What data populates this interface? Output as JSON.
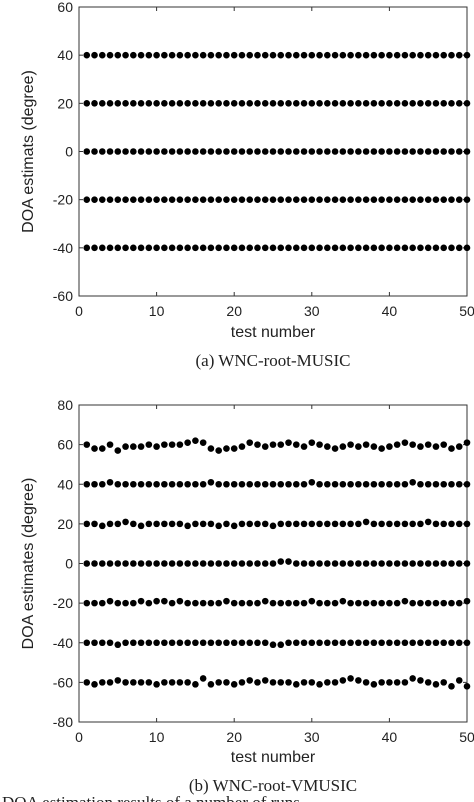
{
  "chart_data": [
    {
      "type": "scatter",
      "caption": "(a) WNC-root-MUSIC",
      "xlabel": "test number",
      "ylabel": "DOA estimats (degree)",
      "xlim": [
        0,
        50
      ],
      "xticks": [
        0,
        10,
        20,
        30,
        40,
        50
      ],
      "ylim": [
        -60,
        60
      ],
      "yticks": [
        -60,
        -40,
        -20,
        0,
        20,
        40,
        60
      ],
      "color": "#000000",
      "x": [
        1,
        2,
        3,
        4,
        5,
        6,
        7,
        8,
        9,
        10,
        11,
        12,
        13,
        14,
        15,
        16,
        17,
        18,
        19,
        20,
        21,
        22,
        23,
        24,
        25,
        26,
        27,
        28,
        29,
        30,
        31,
        32,
        33,
        34,
        35,
        36,
        37,
        38,
        39,
        40,
        41,
        42,
        43,
        44,
        45,
        46,
        47,
        48,
        49,
        50
      ],
      "series": [
        {
          "values": [
            40,
            40,
            40,
            40,
            40,
            40,
            40,
            40,
            40,
            40,
            40,
            40,
            40,
            40,
            40,
            40,
            40,
            40,
            40,
            40,
            40,
            40,
            40,
            40,
            40,
            40,
            40,
            40,
            40,
            40,
            40,
            40,
            40,
            40,
            40,
            40,
            40,
            40,
            40,
            40,
            40,
            40,
            40,
            40,
            40,
            40,
            40,
            40,
            40,
            40
          ]
        },
        {
          "values": [
            20,
            20,
            20,
            20,
            20,
            20,
            20,
            20,
            20,
            20,
            20,
            20,
            20,
            20,
            20,
            20,
            20,
            20,
            20,
            20,
            20,
            20,
            20,
            20,
            20,
            20,
            20,
            20,
            20,
            20,
            20,
            20,
            20,
            20,
            20,
            20,
            20,
            20,
            20,
            20,
            20,
            20,
            20,
            20,
            20,
            20,
            20,
            20,
            20,
            20
          ]
        },
        {
          "values": [
            0,
            0,
            0,
            0,
            0,
            0,
            0,
            0,
            0,
            0,
            0,
            0,
            0,
            0,
            0,
            0,
            0,
            0,
            0,
            0,
            0,
            0,
            0,
            0,
            0,
            0,
            0,
            0,
            0,
            0,
            0,
            0,
            0,
            0,
            0,
            0,
            0,
            0,
            0,
            0,
            0,
            0,
            0,
            0,
            0,
            0,
            0,
            0,
            0,
            0
          ]
        },
        {
          "values": [
            -20,
            -20,
            -20,
            -20,
            -20,
            -20,
            -20,
            -20,
            -20,
            -20,
            -20,
            -20,
            -20,
            -20,
            -20,
            -20,
            -20,
            -20,
            -20,
            -20,
            -20,
            -20,
            -20,
            -20,
            -20,
            -20,
            -20,
            -20,
            -20,
            -20,
            -20,
            -20,
            -20,
            -20,
            -20,
            -20,
            -20,
            -20,
            -20,
            -20,
            -20,
            -20,
            -20,
            -20,
            -20,
            -20,
            -20,
            -20,
            -20,
            -20
          ]
        },
        {
          "values": [
            -40,
            -40,
            -40,
            -40,
            -40,
            -40,
            -40,
            -40,
            -40,
            -40,
            -40,
            -40,
            -40,
            -40,
            -40,
            -40,
            -40,
            -40,
            -40,
            -40,
            -40,
            -40,
            -40,
            -40,
            -40,
            -40,
            -40,
            -40,
            -40,
            -40,
            -40,
            -40,
            -40,
            -40,
            -40,
            -40,
            -40,
            -40,
            -40,
            -40,
            -40,
            -40,
            -40,
            -40,
            -40,
            -40,
            -40,
            -40,
            -40,
            -40
          ]
        }
      ]
    },
    {
      "type": "scatter",
      "caption": "(b) WNC-root-VMUSIC",
      "xlabel": "test number",
      "ylabel": "DOA estimates (degree)",
      "xlim": [
        0,
        50
      ],
      "xticks": [
        0,
        10,
        20,
        30,
        40,
        50
      ],
      "ylim": [
        -80,
        80
      ],
      "yticks": [
        -80,
        -60,
        -40,
        -20,
        0,
        20,
        40,
        60,
        80
      ],
      "color": "#000000",
      "x": [
        1,
        2,
        3,
        4,
        5,
        6,
        7,
        8,
        9,
        10,
        11,
        12,
        13,
        14,
        15,
        16,
        17,
        18,
        19,
        20,
        21,
        22,
        23,
        24,
        25,
        26,
        27,
        28,
        29,
        30,
        31,
        32,
        33,
        34,
        35,
        36,
        37,
        38,
        39,
        40,
        41,
        42,
        43,
        44,
        45,
        46,
        47,
        48,
        49,
        50
      ],
      "series": [
        {
          "values": [
            60,
            58,
            58,
            60,
            57,
            59,
            59,
            59,
            60,
            59,
            60,
            60,
            60,
            61,
            62,
            61,
            58,
            57,
            58,
            58,
            59,
            61,
            60,
            59,
            60,
            60,
            61,
            60,
            59,
            61,
            60,
            59,
            58,
            59,
            60,
            59,
            60,
            59,
            58,
            59,
            60,
            61,
            60,
            59,
            60,
            59,
            60,
            58,
            59,
            61
          ]
        },
        {
          "values": [
            40,
            40,
            40,
            41,
            40,
            40,
            40,
            40,
            40,
            40,
            40,
            40,
            40,
            40,
            40,
            40,
            41,
            40,
            40,
            40,
            40,
            40,
            40,
            40,
            40,
            40,
            40,
            40,
            40,
            41,
            40,
            40,
            40,
            40,
            40,
            40,
            40,
            40,
            40,
            40,
            40,
            40,
            41,
            40,
            40,
            40,
            40,
            40,
            40,
            40
          ]
        },
        {
          "values": [
            20,
            20,
            19,
            20,
            20,
            21,
            20,
            19,
            20,
            20,
            20,
            20,
            20,
            19,
            20,
            20,
            20,
            19,
            20,
            19,
            20,
            20,
            20,
            20,
            19,
            20,
            20,
            20,
            20,
            20,
            20,
            20,
            20,
            20,
            20,
            20,
            21,
            20,
            20,
            20,
            20,
            20,
            20,
            20,
            21,
            20,
            20,
            20,
            20,
            20
          ]
        },
        {
          "values": [
            0,
            0,
            0,
            0,
            0,
            0,
            0,
            0,
            0,
            0,
            0,
            0,
            0,
            0,
            0,
            0,
            0,
            0,
            0,
            0,
            0,
            0,
            0,
            0,
            0,
            1,
            1,
            0,
            0,
            0,
            0,
            0,
            0,
            0,
            0,
            0,
            0,
            0,
            0,
            0,
            0,
            0,
            0,
            0,
            0,
            0,
            0,
            0,
            0,
            0
          ]
        },
        {
          "values": [
            -20,
            -20,
            -20,
            -19,
            -20,
            -20,
            -20,
            -19,
            -20,
            -19,
            -19,
            -20,
            -19,
            -20,
            -20,
            -20,
            -20,
            -20,
            -19,
            -20,
            -20,
            -20,
            -20,
            -19,
            -20,
            -20,
            -20,
            -20,
            -20,
            -19,
            -20,
            -20,
            -20,
            -19,
            -20,
            -20,
            -20,
            -20,
            -20,
            -20,
            -20,
            -19,
            -20,
            -20,
            -20,
            -20,
            -20,
            -20,
            -20,
            -19
          ]
        },
        {
          "values": [
            -40,
            -40,
            -40,
            -40,
            -41,
            -40,
            -40,
            -40,
            -40,
            -40,
            -40,
            -40,
            -40,
            -40,
            -40,
            -40,
            -40,
            -40,
            -40,
            -40,
            -40,
            -40,
            -40,
            -40,
            -41,
            -41,
            -40,
            -40,
            -40,
            -40,
            -40,
            -40,
            -40,
            -40,
            -40,
            -40,
            -40,
            -40,
            -40,
            -40,
            -40,
            -40,
            -40,
            -40,
            -40,
            -40,
            -40,
            -40,
            -40,
            -40
          ]
        },
        {
          "values": [
            -60,
            -61,
            -60,
            -60,
            -59,
            -60,
            -60,
            -60,
            -60,
            -61,
            -60,
            -60,
            -60,
            -60,
            -61,
            -58,
            -61,
            -60,
            -60,
            -61,
            -60,
            -59,
            -60,
            -59,
            -60,
            -60,
            -60,
            -61,
            -60,
            -60,
            -61,
            -60,
            -60,
            -59,
            -58,
            -59,
            -60,
            -61,
            -60,
            -60,
            -60,
            -60,
            -58,
            -59,
            -60,
            -61,
            -60,
            -62,
            -59,
            -62
          ]
        }
      ]
    }
  ],
  "caption": "DOA estimation results of a number of runs"
}
